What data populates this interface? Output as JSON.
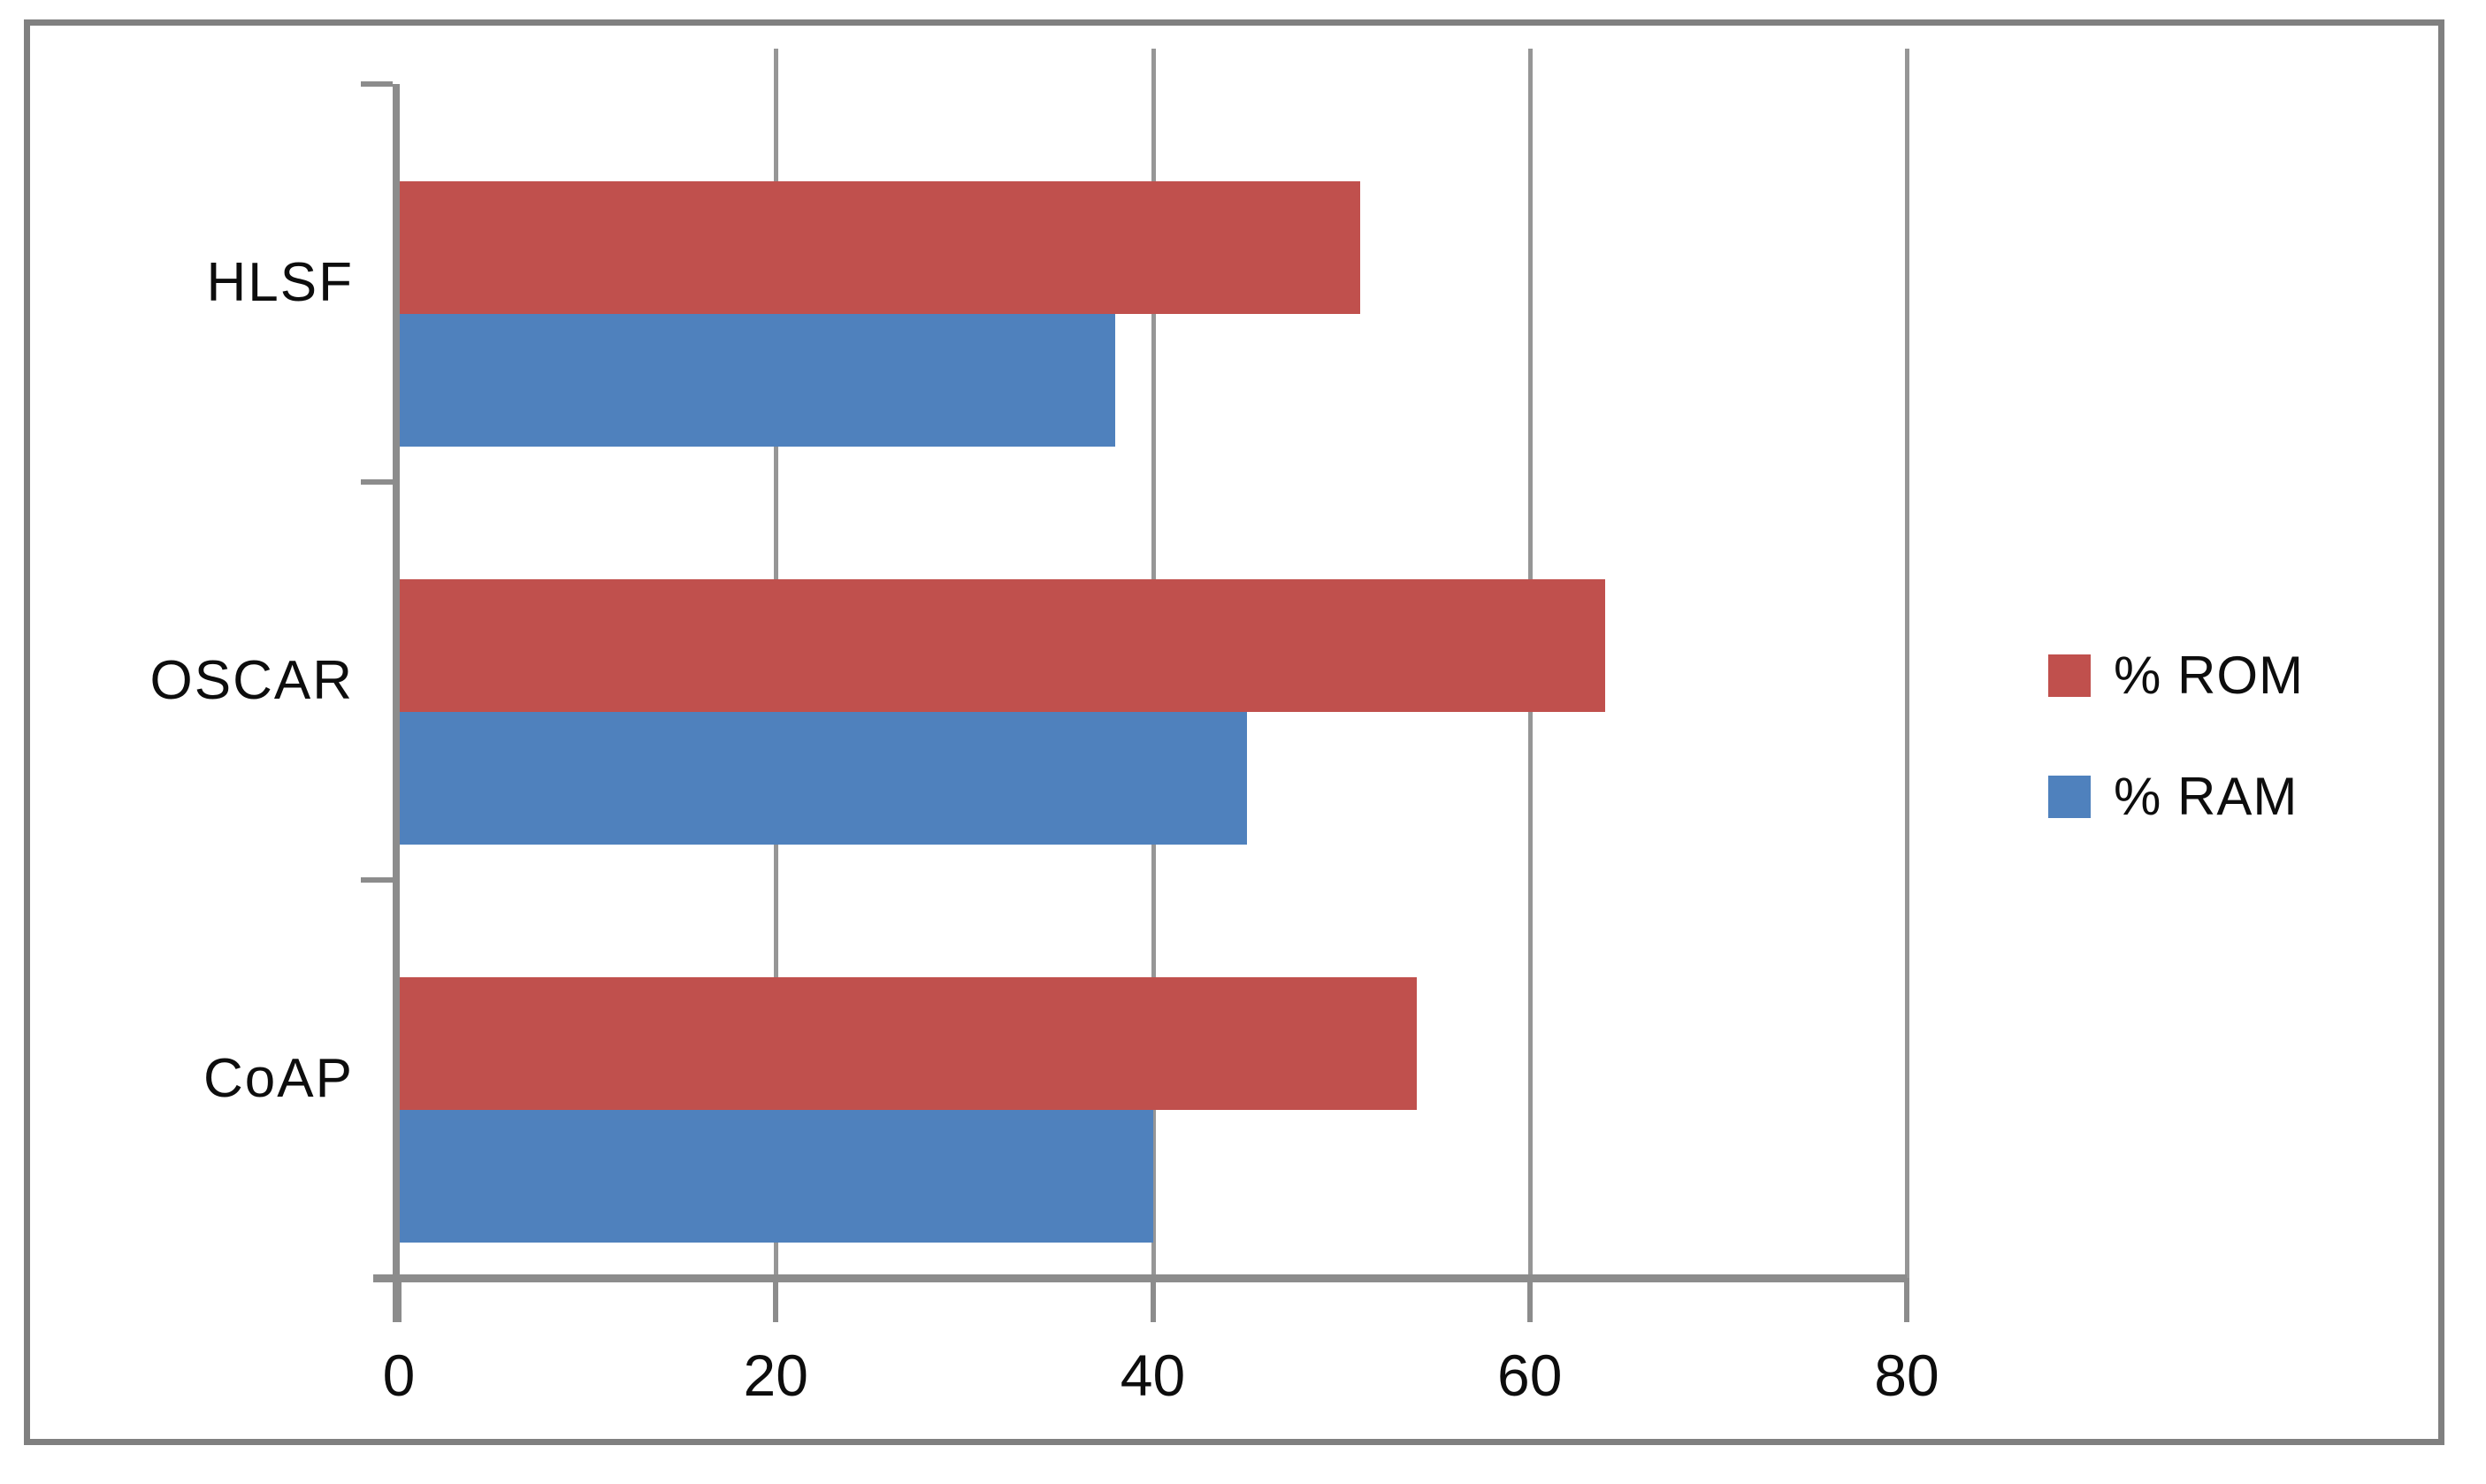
{
  "chart_data": {
    "type": "bar",
    "orientation": "horizontal",
    "title": "",
    "xlabel": "",
    "ylabel": "",
    "categories": [
      "HLSF",
      "OSCAR",
      "CoAP"
    ],
    "series": [
      {
        "name": "% ROM",
        "color": "#C0504D",
        "values": [
          51,
          64,
          54
        ]
      },
      {
        "name": "% RAM",
        "color": "#4F81BD",
        "values": [
          38,
          45,
          40
        ]
      }
    ],
    "xlim": [
      0,
      80
    ],
    "xticks": [
      0,
      20,
      40,
      60,
      80
    ],
    "grid": "vertical-gridlines-on",
    "legend_position": "middle-right",
    "category_order": "top-to-bottom",
    "bar_group_order": "ROM-above-RAM"
  },
  "legend": {
    "items": [
      {
        "label": "% ROM",
        "color": "#C0504D"
      },
      {
        "label": "% RAM",
        "color": "#4F81BD"
      }
    ]
  },
  "colors": {
    "rom_red": "#C0504D",
    "ram_blue": "#4F81BD",
    "gridline_gray": "#969696",
    "axis_gray": "#8c8c8c",
    "border_gray": "#808080",
    "background": "#ffffff",
    "text": "#0d0d0d"
  }
}
